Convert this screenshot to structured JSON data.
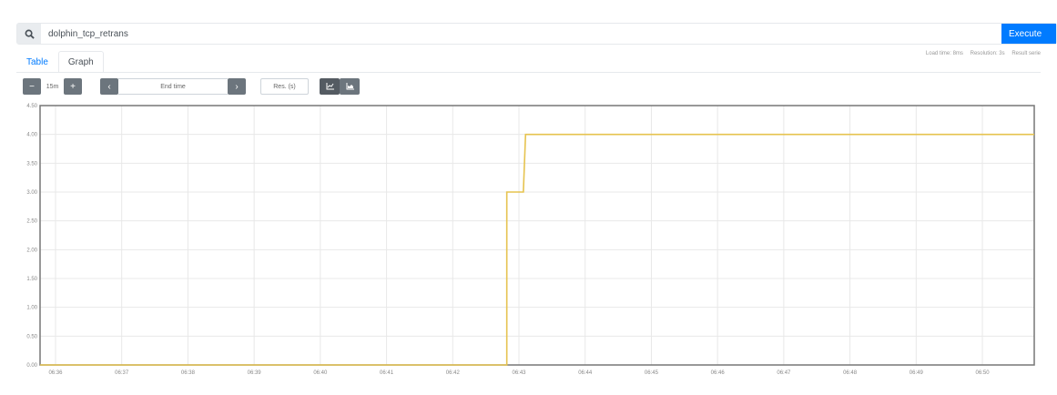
{
  "query": {
    "value": "dolphin_tcp_retrans",
    "execute_label": "Execute",
    "icon": "search-icon"
  },
  "tabs": [
    {
      "label": "Table",
      "active": false
    },
    {
      "label": "Graph",
      "active": true
    }
  ],
  "stats": {
    "load_time": "Load time: 8ms",
    "resolution": "Resolution: 3s",
    "result_series": "Result serie"
  },
  "controls": {
    "range": "15m",
    "end_time_placeholder": "End time",
    "res_placeholder": "Res. (s)",
    "minus": "−",
    "plus": "+",
    "prev": "‹",
    "next": "›"
  },
  "chart_data": {
    "type": "line",
    "series": [
      {
        "color": "#e6c34f",
        "points": [
          [
            "06:35:46",
            0
          ],
          [
            "06:42:49",
            0
          ],
          [
            "06:42:49",
            3
          ],
          [
            "06:43:04",
            3
          ],
          [
            "06:43:06",
            4
          ],
          [
            "06:50:47",
            4
          ]
        ]
      }
    ],
    "xlim": [
      "06:35:46",
      "06:50:47"
    ],
    "ylim": [
      0,
      4.5
    ],
    "yticks": [
      "0.00",
      "0.50",
      "1.00",
      "1.50",
      "2.00",
      "2.50",
      "3.00",
      "3.50",
      "4.00",
      "4.50"
    ],
    "xticks": [
      "06:36",
      "06:37",
      "06:38",
      "06:39",
      "06:40",
      "06:41",
      "06:42",
      "06:43",
      "06:44",
      "06:45",
      "06:46",
      "06:47",
      "06:48",
      "06:49",
      "06:50"
    ],
    "grid": true,
    "mode": "line"
  }
}
